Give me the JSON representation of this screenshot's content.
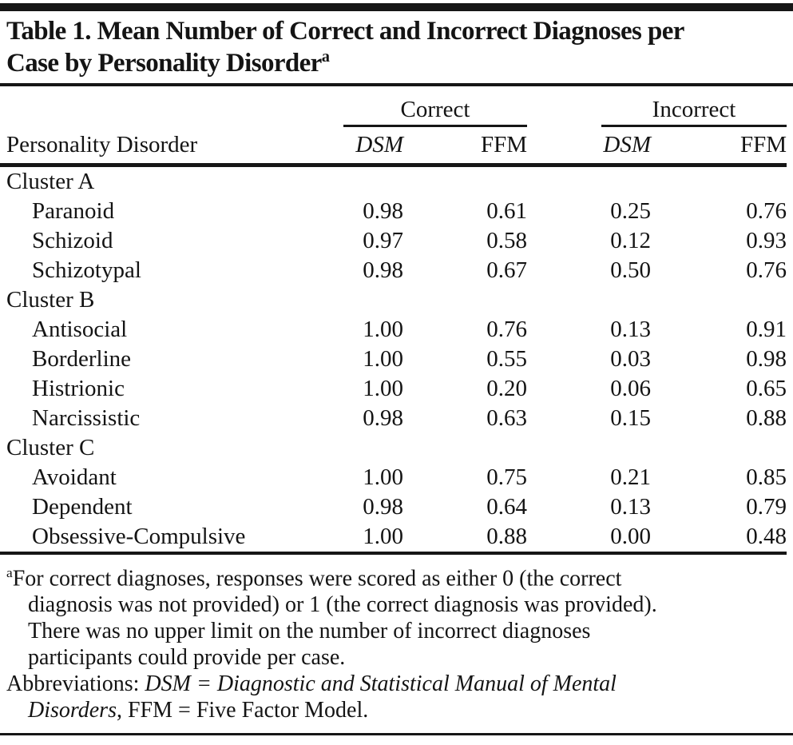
{
  "colors": {
    "text": "#141414",
    "rule": "#161616",
    "background": "#ffffff"
  },
  "title": {
    "line1": "Table 1. Mean Number of Correct and Incorrect Diagnoses per",
    "line2": "Case by Personality Disorder",
    "superscript": "a"
  },
  "table": {
    "row_header": "Personality Disorder",
    "group_headers": [
      "Correct",
      "Incorrect"
    ],
    "sub_headers": [
      {
        "label": "DSM",
        "italic": true
      },
      {
        "label": "FFM",
        "italic": false
      },
      {
        "label": "DSM",
        "italic": true
      },
      {
        "label": "FFM",
        "italic": false
      }
    ],
    "rows": [
      {
        "type": "group",
        "label": "Cluster A"
      },
      {
        "type": "data",
        "label": "Paranoid",
        "values": [
          "0.98",
          "0.61",
          "0.25",
          "0.76"
        ]
      },
      {
        "type": "data",
        "label": "Schizoid",
        "values": [
          "0.97",
          "0.58",
          "0.12",
          "0.93"
        ]
      },
      {
        "type": "data",
        "label": "Schizotypal",
        "values": [
          "0.98",
          "0.67",
          "0.50",
          "0.76"
        ]
      },
      {
        "type": "group",
        "label": "Cluster B"
      },
      {
        "type": "data",
        "label": "Antisocial",
        "values": [
          "1.00",
          "0.76",
          "0.13",
          "0.91"
        ]
      },
      {
        "type": "data",
        "label": "Borderline",
        "values": [
          "1.00",
          "0.55",
          "0.03",
          "0.98"
        ]
      },
      {
        "type": "data",
        "label": "Histrionic",
        "values": [
          "1.00",
          "0.20",
          "0.06",
          "0.65"
        ]
      },
      {
        "type": "data",
        "label": "Narcissistic",
        "values": [
          "0.98",
          "0.63",
          "0.15",
          "0.88"
        ]
      },
      {
        "type": "group",
        "label": "Cluster C"
      },
      {
        "type": "data",
        "label": "Avoidant",
        "values": [
          "1.00",
          "0.75",
          "0.21",
          "0.85"
        ]
      },
      {
        "type": "data",
        "label": "Dependent",
        "values": [
          "0.98",
          "0.64",
          "0.13",
          "0.79"
        ]
      },
      {
        "type": "data",
        "label": "Obsessive-Compulsive",
        "values": [
          "1.00",
          "0.88",
          "0.00",
          "0.48"
        ]
      }
    ]
  },
  "footnotes": [
    {
      "indent": false,
      "sup": "a",
      "segments": [
        {
          "text": "For correct diagnoses, responses were scored as either 0 (the correct",
          "italic": false
        }
      ]
    },
    {
      "indent": true,
      "segments": [
        {
          "text": "diagnosis was not provided) or 1 (the correct diagnosis was provided).",
          "italic": false
        }
      ]
    },
    {
      "indent": true,
      "segments": [
        {
          "text": "There was no upper limit on the number of incorrect diagnoses",
          "italic": false
        }
      ]
    },
    {
      "indent": true,
      "segments": [
        {
          "text": "participants could provide per case.",
          "italic": false
        }
      ]
    },
    {
      "indent": false,
      "segments": [
        {
          "text": "Abbreviations: ",
          "italic": false
        },
        {
          "text": "DSM = Diagnostic and Statistical Manual of Mental",
          "italic": true
        }
      ]
    },
    {
      "indent": true,
      "segments": [
        {
          "text": "Disorders",
          "italic": true
        },
        {
          "text": ", FFM = Five Factor Model.",
          "italic": false
        }
      ]
    }
  ]
}
